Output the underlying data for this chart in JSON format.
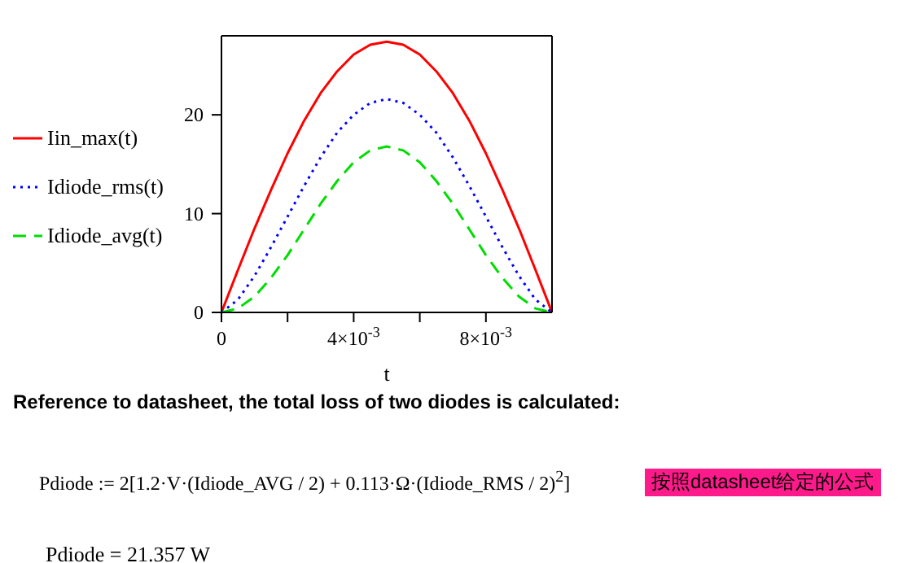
{
  "chart_data": {
    "type": "line",
    "xlabel": "t",
    "x": [
      0,
      0.0005,
      0.001,
      0.0015,
      0.002,
      0.0025,
      0.003,
      0.0035,
      0.004,
      0.0045,
      0.005,
      0.0055,
      0.006,
      0.0065,
      0.007,
      0.0075,
      0.008,
      0.0085,
      0.009,
      0.0095,
      0.01
    ],
    "series": [
      {
        "name": "Iin_max(t)",
        "color": "#ff0000",
        "line_style": "solid",
        "values": [
          0,
          4.3,
          8.5,
          12.4,
          16.1,
          19.4,
          22.2,
          24.4,
          26.1,
          27.1,
          27.4,
          27.1,
          26.1,
          24.4,
          22.2,
          19.4,
          16.1,
          12.4,
          8.5,
          4.3,
          0
        ]
      },
      {
        "name": "Idiode_rms(t)",
        "color": "#0000ff",
        "line_style": "dotted",
        "values": [
          0,
          1.3,
          3.7,
          6.6,
          9.7,
          12.8,
          15.7,
          18.2,
          20.0,
          21.2,
          21.6,
          21.2,
          20.0,
          18.2,
          15.7,
          12.8,
          9.7,
          6.6,
          3.7,
          1.3,
          0
        ]
      },
      {
        "name": "Idiode_avg(t)",
        "color": "#00dd00",
        "line_style": "dashed",
        "values": [
          0,
          0.4,
          1.6,
          3.5,
          5.8,
          8.4,
          11.0,
          13.3,
          15.2,
          16.4,
          16.8,
          16.4,
          15.2,
          13.3,
          11.0,
          8.4,
          5.8,
          3.5,
          1.6,
          0.4,
          0
        ]
      }
    ],
    "xlim": [
      0,
      0.01
    ],
    "ylim": [
      0,
      28
    ],
    "xticks": [
      0,
      {
        "value": 0.002,
        "label": null
      },
      {
        "value": 0.004,
        "label": "4×10$^{-3}$"
      },
      {
        "value": 0.006,
        "label": null
      },
      {
        "value": 0.008,
        "label": "8×10$^{-3}$"
      }
    ],
    "yticks": [
      0,
      10,
      20
    ],
    "grid": false,
    "legend": "left",
    "marker": "none",
    "annotations": [
      "Reference to datasheet, the total loss of  two diodes is calculated:",
      "Pdiode := 2[1.2·V·(Idiode_AVG / 2) + 0.113·Ω·(Idiode_RMS / 2)$^{2}$]",
      "按照datasheet给定的公式",
      "Pdiode = 21.357 W"
    ]
  }
}
